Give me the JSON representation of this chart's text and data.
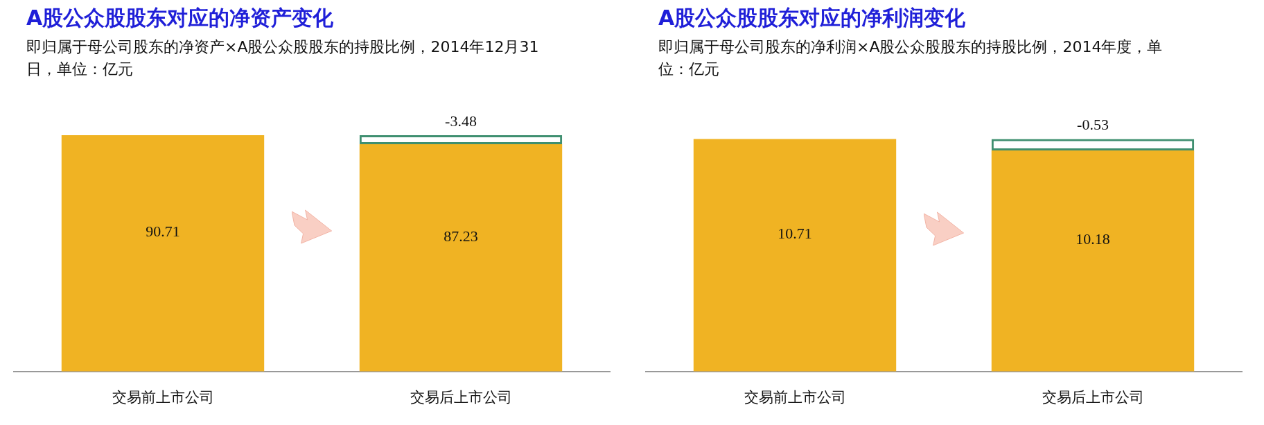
{
  "chart_data": [
    {
      "type": "bar",
      "title": "A股公众股股东对应的净资产变化",
      "subtitle": "即归属于母公司股东的净资产×A股公众股股东的持股比例，2014年12月31日，单位：亿元",
      "categories": [
        "交易前上市公司",
        "交易后上市公司"
      ],
      "stacked": true,
      "legend": false,
      "annotations": [
        {
          "text": "-3.48",
          "x": "交易后上市公司",
          "y": 90.71
        }
      ],
      "series": [
        {
          "color": "#f0b323",
          "values": [
            90.71,
            87.23
          ],
          "value_labels": [
            "90.71",
            "87.23"
          ]
        },
        {
          "color": "#3f8f70",
          "values": [
            null,
            3.48
          ],
          "line_style": "dashed"
        }
      ]
    },
    {
      "type": "bar",
      "title": "A股公众股股东对应的净利润变化",
      "subtitle": "即归属于母公司股东的净利润×A股公众股股东的持股比例，2014年度，单位：亿元",
      "categories": [
        "交易前上市公司",
        "交易后上市公司"
      ],
      "stacked": true,
      "legend": false,
      "annotations": [
        {
          "text": "-0.53",
          "x": "交易后上市公司",
          "y": 10.71
        }
      ],
      "series": [
        {
          "color": "#f0b323",
          "values": [
            10.71,
            10.18
          ],
          "value_labels": [
            "10.71",
            "10.18"
          ]
        },
        {
          "color": "#3f8f70",
          "values": [
            null,
            0.53
          ],
          "line_style": "dashed"
        }
      ]
    }
  ]
}
